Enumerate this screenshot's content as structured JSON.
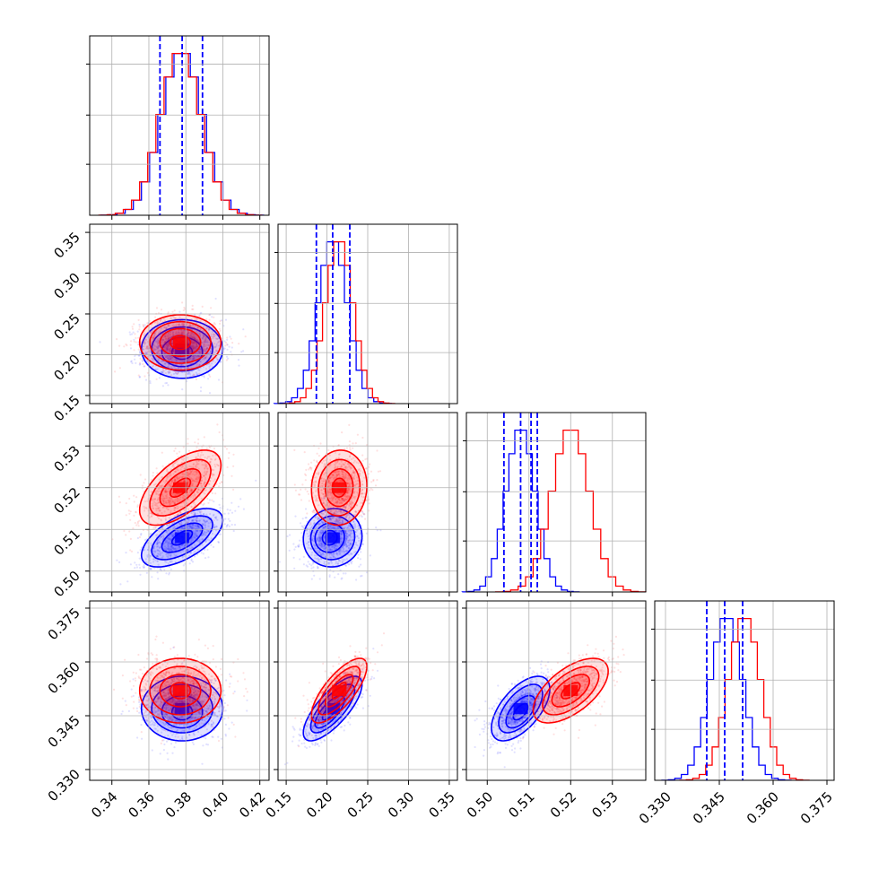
{
  "colors": {
    "a": "#0000ff",
    "b": "#ff0000",
    "grid": "#b0b0b0",
    "frame": "#000000"
  },
  "chart_data": {
    "type": "corner",
    "series": [
      {
        "name": "",
        "color": "#0000ff",
        "mean": [
          0.378,
          0.207,
          0.508,
          0.347
        ],
        "sd": [
          0.011,
          0.018,
          0.0035,
          0.0045
        ],
        "quantiles": [
          [
            0.366,
            0.378,
            0.389
          ],
          [
            0.187,
            0.207,
            0.228
          ],
          [
            0.504,
            0.508,
            0.512
          ],
          [
            0.3415,
            0.3465,
            0.3515
          ]
        ],
        "extra_lines": [
          [],
          [],
          [
            0.5105
          ],
          []
        ],
        "shift": [
          0,
          -0.4,
          0,
          -0.4
        ]
      },
      {
        "name": "",
        "color": "#ff0000",
        "mean": [
          0.377,
          0.215,
          0.52,
          0.352
        ],
        "sd": [
          0.011,
          0.017,
          0.0045,
          0.0045
        ]
      }
    ],
    "correlations": {
      "0-2": 0.6,
      "1-3": 0.75,
      "2-3": 0.6,
      "0-1": 0.0,
      "0-3": 0.0,
      "1-2": 0.05
    },
    "axes": [
      {
        "lim": [
          0.328,
          0.425
        ],
        "ticks": [
          0.34,
          0.36,
          0.38,
          0.4,
          0.42
        ],
        "tick_labels": [
          "0.34",
          "0.36",
          "0.38",
          "0.40",
          "0.42"
        ]
      },
      {
        "lim": [
          0.14,
          0.36
        ],
        "ticks": [
          0.15,
          0.2,
          0.25,
          0.3,
          0.35
        ],
        "tick_labels": [
          "0.15",
          "0.20",
          "0.25",
          "0.30",
          "0.35"
        ]
      },
      {
        "lim": [
          0.495,
          0.538
        ],
        "ticks": [
          0.5,
          0.51,
          0.52,
          0.53
        ],
        "tick_labels": [
          "0.50",
          "0.51",
          "0.52",
          "0.53"
        ]
      },
      {
        "lim": [
          0.327,
          0.377
        ],
        "ticks": [
          0.33,
          0.345,
          0.36,
          0.375
        ],
        "tick_labels": [
          "0.330",
          "0.345",
          "0.360",
          "0.375"
        ]
      }
    ],
    "grid": true,
    "histogram_bins": 20
  }
}
